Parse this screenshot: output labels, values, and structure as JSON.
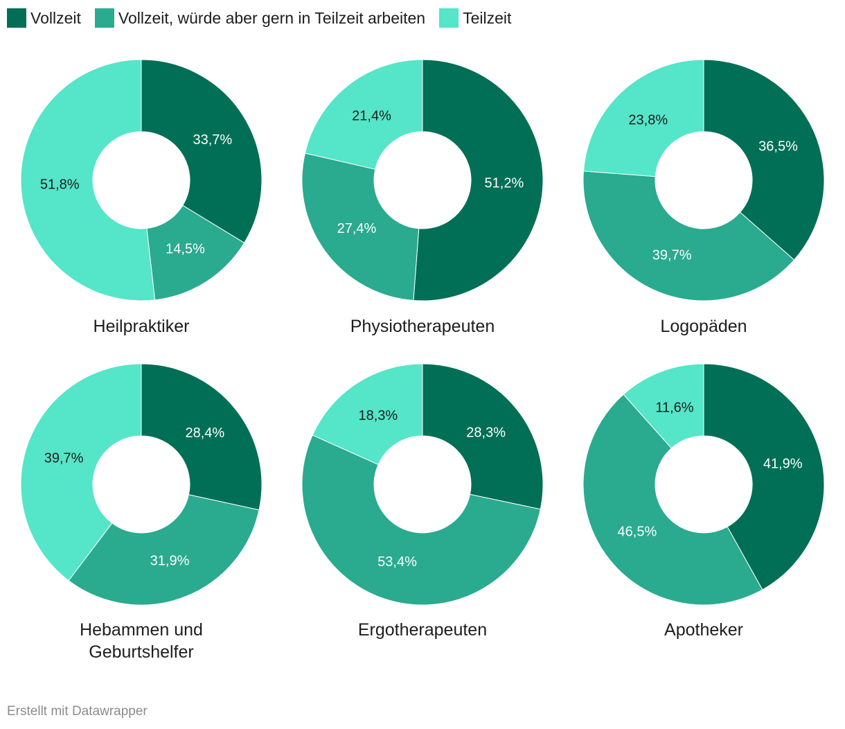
{
  "legend": {
    "items": [
      {
        "label": "Vollzeit",
        "color": "#006f55"
      },
      {
        "label": "Vollzeit, würde aber gern in Teilzeit arbeiten",
        "color": "#2aaa8f"
      },
      {
        "label": "Teilzeit",
        "color": "#55e5c8"
      }
    ]
  },
  "chart_data": [
    {
      "type": "pie",
      "title_lines": [
        "Heilpraktiker"
      ],
      "categories": [
        "Vollzeit",
        "Vollzeit, würde aber gern in Teilzeit arbeiten",
        "Teilzeit"
      ],
      "values": [
        33.7,
        14.5,
        51.8
      ],
      "labels": [
        "33,7%",
        "14,5%",
        "51,8%"
      ]
    },
    {
      "type": "pie",
      "title_lines": [
        "Physiotherapeuten"
      ],
      "categories": [
        "Vollzeit",
        "Vollzeit, würde aber gern in Teilzeit arbeiten",
        "Teilzeit"
      ],
      "values": [
        51.2,
        27.4,
        21.4
      ],
      "labels": [
        "51,2%",
        "27,4%",
        "21,4%"
      ]
    },
    {
      "type": "pie",
      "title_lines": [
        "Logopäden"
      ],
      "categories": [
        "Vollzeit",
        "Vollzeit, würde aber gern in Teilzeit arbeiten",
        "Teilzeit"
      ],
      "values": [
        36.5,
        39.7,
        23.8
      ],
      "labels": [
        "36,5%",
        "39,7%",
        "23,8%"
      ]
    },
    {
      "type": "pie",
      "title_lines": [
        "Hebammen und",
        "Geburtshelfer"
      ],
      "categories": [
        "Vollzeit",
        "Vollzeit, würde aber gern in Teilzeit arbeiten",
        "Teilzeit"
      ],
      "values": [
        28.4,
        31.9,
        39.7
      ],
      "labels": [
        "28,4%",
        "31,9%",
        "39,7%"
      ]
    },
    {
      "type": "pie",
      "title_lines": [
        "Ergotherapeuten"
      ],
      "categories": [
        "Vollzeit",
        "Vollzeit, würde aber gern in Teilzeit arbeiten",
        "Teilzeit"
      ],
      "values": [
        28.3,
        53.4,
        18.3
      ],
      "labels": [
        "28,3%",
        "53,4%",
        "18,3%"
      ]
    },
    {
      "type": "pie",
      "title_lines": [
        "Apotheker"
      ],
      "categories": [
        "Vollzeit",
        "Vollzeit, würde aber gern in Teilzeit arbeiten",
        "Teilzeit"
      ],
      "values": [
        41.9,
        46.5,
        11.6
      ],
      "labels": [
        "41,9%",
        "46,5%",
        "11,6%"
      ]
    }
  ],
  "footer": {
    "text": "Erstellt mit Datawrapper"
  }
}
